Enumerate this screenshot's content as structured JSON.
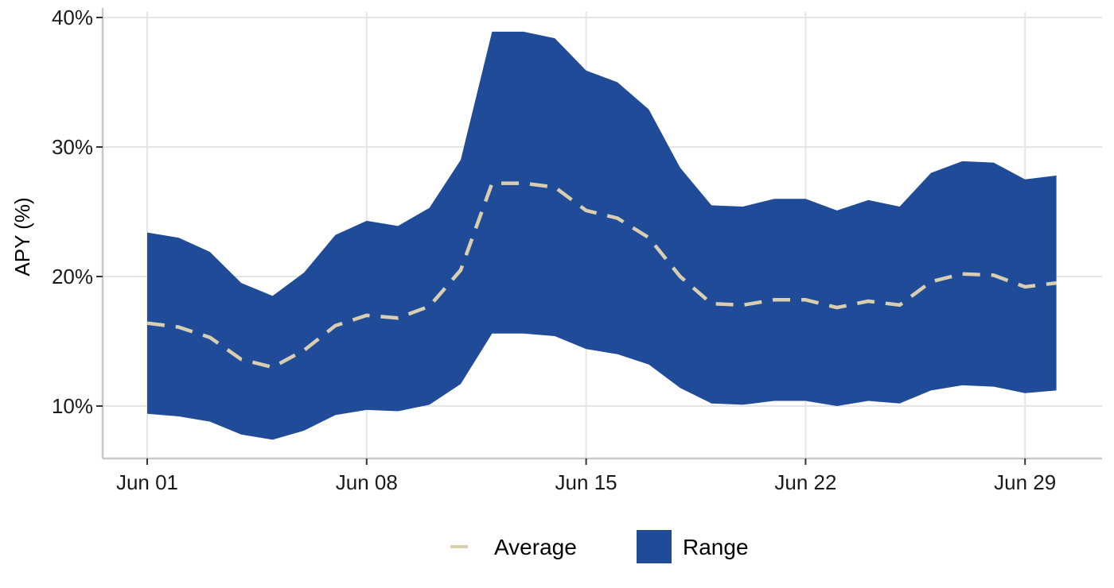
{
  "colors": {
    "range_fill": "#1f4b98",
    "average_line": "#d9cfb0",
    "grid": "#e5e5e5",
    "axis": "#c8c8c8"
  },
  "chart_data": {
    "type": "area",
    "title": "",
    "xlabel": "",
    "ylabel": "APY (%)",
    "ylim": [
      6,
      40
    ],
    "xlim": [
      "May 31",
      "Jul 02"
    ],
    "grid": true,
    "legend_position": "bottom",
    "x": [
      "Jun 01",
      "Jun 02",
      "Jun 03",
      "Jun 04",
      "Jun 05",
      "Jun 06",
      "Jun 07",
      "Jun 08",
      "Jun 09",
      "Jun 10",
      "Jun 11",
      "Jun 12",
      "Jun 13",
      "Jun 14",
      "Jun 15",
      "Jun 16",
      "Jun 17",
      "Jun 18",
      "Jun 19",
      "Jun 20",
      "Jun 21",
      "Jun 22",
      "Jun 23",
      "Jun 24",
      "Jun 25",
      "Jun 26",
      "Jun 27",
      "Jun 28",
      "Jun 29",
      "Jun 30"
    ],
    "x_ticks": [
      "Jun 01",
      "Jun 08",
      "Jun 15",
      "Jun 22",
      "Jun 29"
    ],
    "y_ticks": [
      10,
      20,
      30,
      40
    ],
    "y_tick_labels": [
      "10%",
      "20%",
      "30%",
      "40%"
    ],
    "series": [
      {
        "name": "Average",
        "kind": "line",
        "style": "dashed",
        "values": [
          16.4,
          16.1,
          15.3,
          13.6,
          13.0,
          14.3,
          16.2,
          17.0,
          16.8,
          17.7,
          20.5,
          27.2,
          27.2,
          26.9,
          25.1,
          24.5,
          23.0,
          20.0,
          17.9,
          17.8,
          18.2,
          18.2,
          17.6,
          18.1,
          17.8,
          19.6,
          20.2,
          20.1,
          19.2,
          19.5
        ]
      },
      {
        "name": "Range",
        "kind": "band",
        "lower": [
          9.4,
          9.2,
          8.8,
          7.8,
          7.4,
          8.1,
          9.3,
          9.7,
          9.6,
          10.1,
          11.7,
          15.6,
          15.6,
          15.4,
          14.4,
          14.0,
          13.2,
          11.4,
          10.2,
          10.1,
          10.4,
          10.4,
          10.0,
          10.4,
          10.2,
          11.2,
          11.6,
          11.5,
          11.0,
          11.2
        ],
        "upper": [
          23.4,
          23.0,
          21.9,
          19.5,
          18.5,
          20.3,
          23.2,
          24.3,
          23.9,
          25.3,
          29.0,
          38.9,
          38.9,
          38.4,
          35.9,
          35.0,
          32.9,
          28.4,
          25.5,
          25.4,
          26.0,
          26.0,
          25.1,
          25.9,
          25.4,
          28.0,
          28.9,
          28.8,
          27.5,
          27.8
        ]
      }
    ],
    "legend": [
      "Average",
      "Range"
    ]
  }
}
